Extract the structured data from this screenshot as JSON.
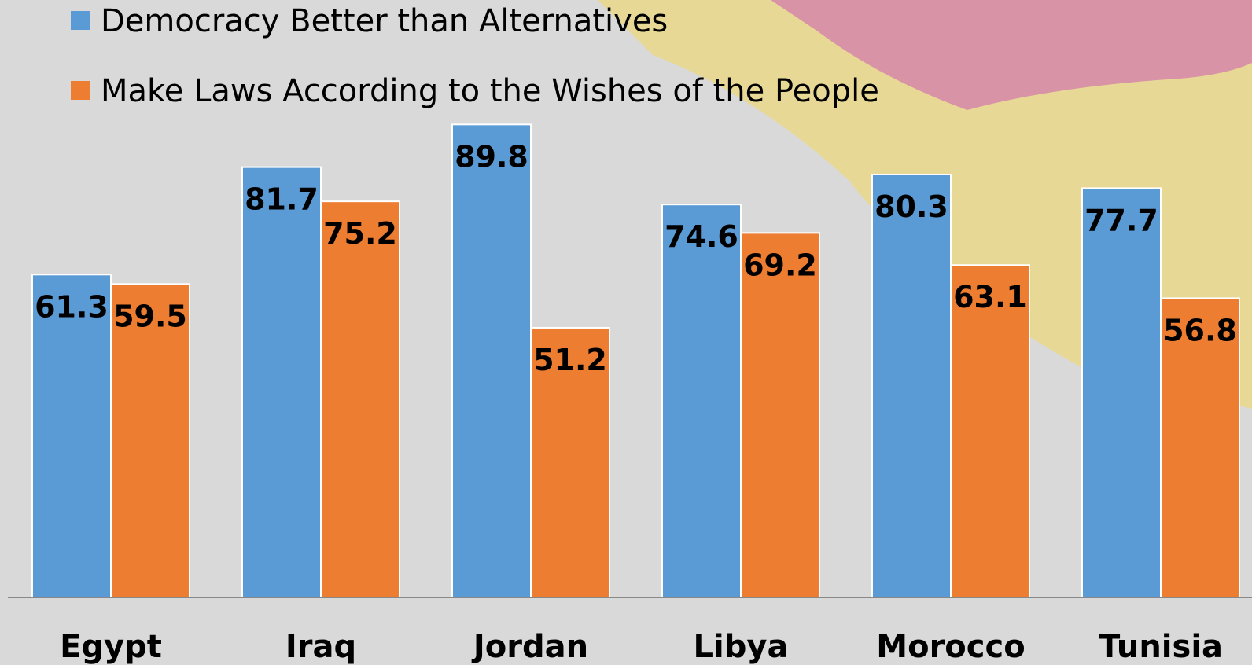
{
  "chart_data": {
    "type": "bar",
    "categories": [
      "Egypt",
      "Iraq",
      "Jordan",
      "Libya",
      "Morocco",
      "Tunisia"
    ],
    "series": [
      {
        "name": "Democracy Better than Alternatives",
        "color": "#5b9bd5",
        "values": [
          61.3,
          81.7,
          89.8,
          74.6,
          80.3,
          77.7
        ]
      },
      {
        "name": "Make Laws According to the Wishes of the People",
        "color": "#ed7d31",
        "values": [
          59.5,
          75.2,
          51.2,
          69.2,
          63.1,
          56.8
        ]
      }
    ],
    "ylim": [
      0,
      100
    ],
    "grid": false,
    "legend_position": "top-left",
    "title": "",
    "xlabel": "",
    "ylabel": ""
  },
  "background": {
    "base_color": "#d9d9d9",
    "decor_colors": [
      "#e8d896",
      "#d993a6"
    ]
  }
}
